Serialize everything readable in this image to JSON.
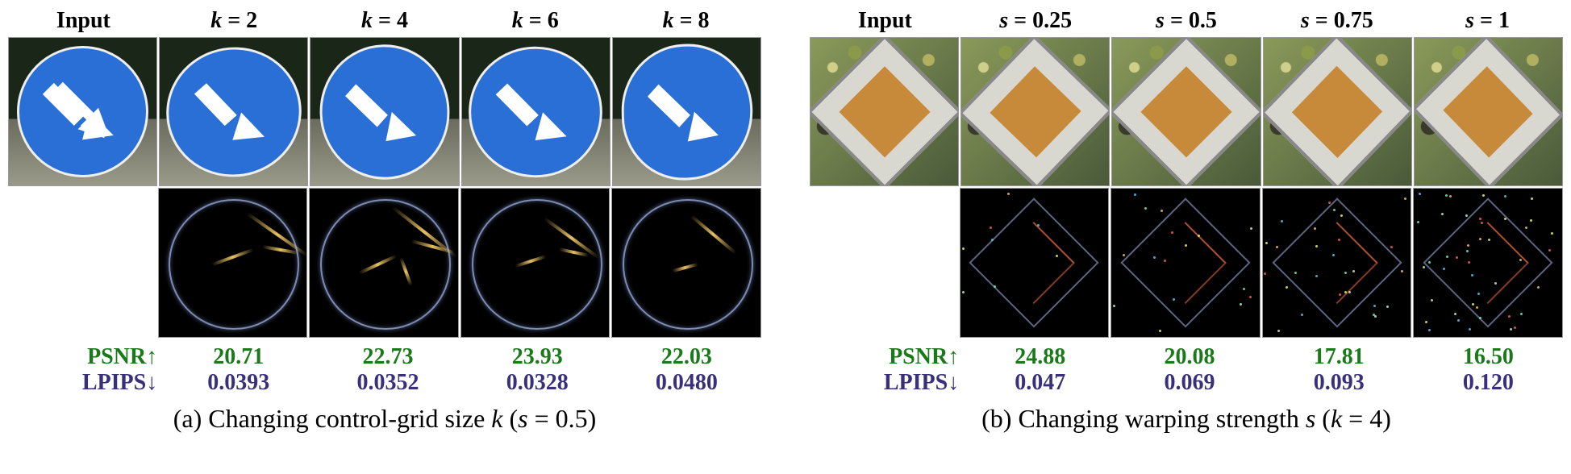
{
  "panel_a": {
    "headers": [
      "Input",
      "k = 2",
      "k = 4",
      "k = 6",
      "k = 8"
    ],
    "header_var_indices": [
      1,
      2,
      3,
      4
    ],
    "psnr_label": "PSNR",
    "lpips_label": "LPIPS",
    "psnr_values": [
      "20.71",
      "22.73",
      "23.93",
      "22.03"
    ],
    "lpips_values": [
      "0.0393",
      "0.0352",
      "0.0328",
      "0.0480"
    ],
    "caption_prefix": "(a) Changing control-grid size ",
    "caption_var": "k",
    "caption_suffix": " (s = 0.5)",
    "colors": {
      "psnr": "#1a7a1a",
      "lpips": "#3a2f7a",
      "sign_blue": "#2a6fd6",
      "sign_border": "#eeeeee"
    },
    "fontsize": {
      "header": 28,
      "metric": 28,
      "caption": 32
    }
  },
  "panel_b": {
    "headers": [
      "Input",
      "s = 0.25",
      "s = 0.5",
      "s = 0.75",
      "s = 1"
    ],
    "header_var_indices": [
      1,
      2,
      3,
      4
    ],
    "psnr_label": "PSNR",
    "lpips_label": "LPIPS",
    "psnr_values": [
      "24.88",
      "20.08",
      "17.81",
      "16.50"
    ],
    "lpips_values": [
      "0.047",
      "0.069",
      "0.093",
      "0.120"
    ],
    "caption_prefix": "(b) Changing warping strength ",
    "caption_var": "s",
    "caption_suffix": " (k = 4)",
    "colors": {
      "psnr": "#1a7a1a",
      "lpips": "#3a2f7a",
      "diamond_fill": "#c78a3a",
      "diamond_outer": "#d8d8d0"
    },
    "fontsize": {
      "header": 28,
      "metric": 28,
      "caption": 32
    }
  },
  "diff_streaks_a": [
    [
      [
        30,
        55,
        50,
        35
      ],
      [
        45,
        35,
        30,
        -20
      ],
      [
        40,
        70,
        25,
        10
      ]
    ],
    [
      [
        28,
        50,
        55,
        38
      ],
      [
        50,
        32,
        28,
        -25
      ],
      [
        38,
        68,
        30,
        15
      ],
      [
        55,
        55,
        20,
        70
      ]
    ],
    [
      [
        32,
        52,
        45,
        36
      ],
      [
        48,
        36,
        22,
        -18
      ],
      [
        42,
        66,
        20,
        12
      ]
    ],
    [
      [
        30,
        48,
        40,
        40
      ],
      [
        52,
        40,
        18,
        -15
      ]
    ]
  ],
  "noise_specks_b": {
    "count_per_level": [
      8,
      16,
      28,
      44
    ],
    "colors": [
      "#ff6",
      "#6cf",
      "#f66",
      "#cfc",
      "#fc6",
      "#6fc"
    ]
  }
}
